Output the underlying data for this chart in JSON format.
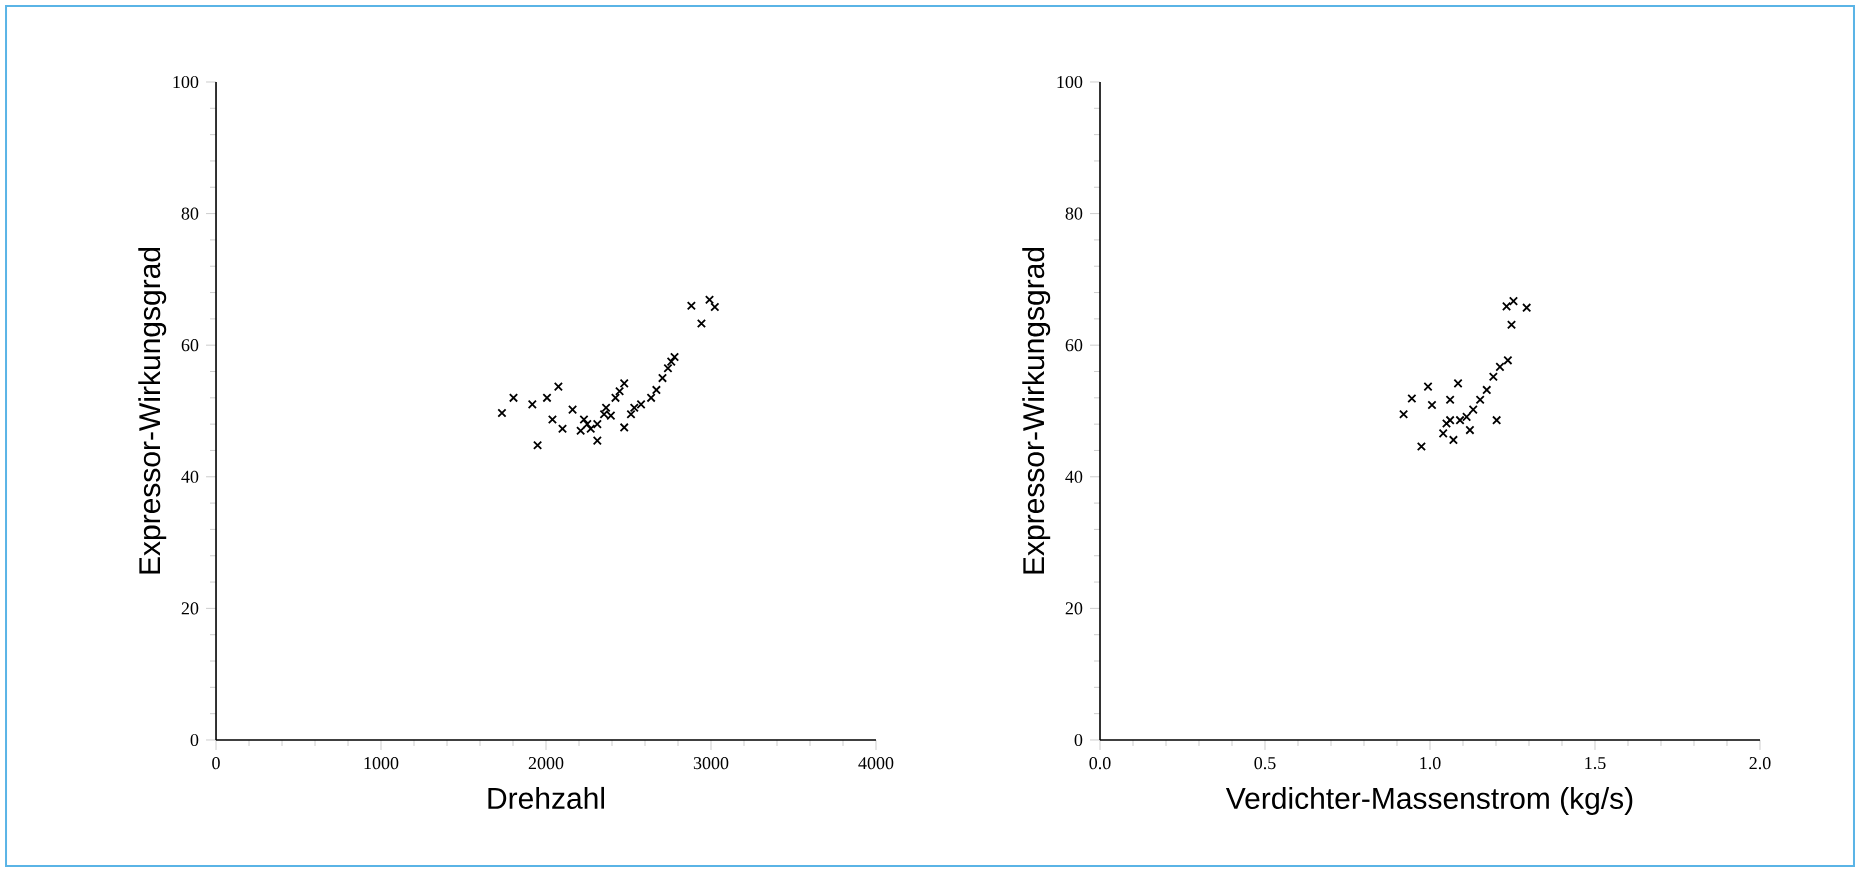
{
  "chart_data": [
    {
      "type": "scatter",
      "xlabel": "Drehzahl",
      "ylabel": "Expressor-Wirkungsgrad",
      "xlim": [
        0,
        4000
      ],
      "ylim": [
        0,
        100
      ],
      "xticks": [
        0,
        1000,
        2000,
        3000,
        4000
      ],
      "yticks": [
        0,
        20,
        40,
        60,
        80,
        100
      ],
      "marker": "cross",
      "grid": false,
      "series": [
        {
          "color": "#000000",
          "x": [
            1733,
            1803,
            1917,
            1949,
            2006,
            2039,
            2075,
            2100,
            2161,
            2230,
            2271,
            2311,
            2311,
            2352,
            2393,
            2421,
            2446,
            2474,
            2474,
            2515,
            2535,
            2576,
            2637,
            2669,
            2706,
            2739,
            2759,
            2779,
            2881,
            2942,
            2991,
            3023,
            2250,
            2364,
            2210
          ],
          "values": [
            49.7,
            52.0,
            51.0,
            44.8,
            52.0,
            48.7,
            53.7,
            47.3,
            50.2,
            48.7,
            47.3,
            48.0,
            45.5,
            49.5,
            49.3,
            52.0,
            53.0,
            54.2,
            47.5,
            49.5,
            50.5,
            51.0,
            52.0,
            53.2,
            55.0,
            56.5,
            57.5,
            58.2,
            66.0,
            63.3,
            66.9,
            65.8,
            48.0,
            50.5,
            47.0
          ]
        }
      ]
    },
    {
      "type": "scatter",
      "xlabel": "Verdichter-Massenstrom (kg/s)",
      "ylabel": "Expressor-Wirkungsgrad",
      "xlim": [
        0,
        2
      ],
      "ylim": [
        0,
        100
      ],
      "xticks": [
        {
          "value": 0,
          "label": "0.0"
        },
        {
          "value": 0.5,
          "label": "0.5"
        },
        {
          "value": 1,
          "label": "1.0"
        },
        {
          "value": 1.5,
          "label": "1.5"
        },
        {
          "value": 2,
          "label": "2.0"
        }
      ],
      "yticks": [
        0,
        20,
        40,
        60,
        80,
        100
      ],
      "marker": "cross",
      "grid": false,
      "series": [
        {
          "color": "#000000",
          "x": [
            0.92,
            0.945,
            0.994,
            0.974,
            1.006,
            1.061,
            1.085,
            1.05,
            1.04,
            1.071,
            1.091,
            1.111,
            1.131,
            1.152,
            1.172,
            1.192,
            1.212,
            1.236,
            1.202,
            1.121,
            1.232,
            1.253,
            1.293,
            1.247,
            1.061
          ],
          "values": [
            49.5,
            51.9,
            53.7,
            44.6,
            50.9,
            51.7,
            54.2,
            48.1,
            46.6,
            45.6,
            48.6,
            49.1,
            50.2,
            51.7,
            53.2,
            55.2,
            56.7,
            57.7,
            48.6,
            47.1,
            65.9,
            66.7,
            65.7,
            63.1,
            48.6
          ]
        }
      ]
    }
  ]
}
